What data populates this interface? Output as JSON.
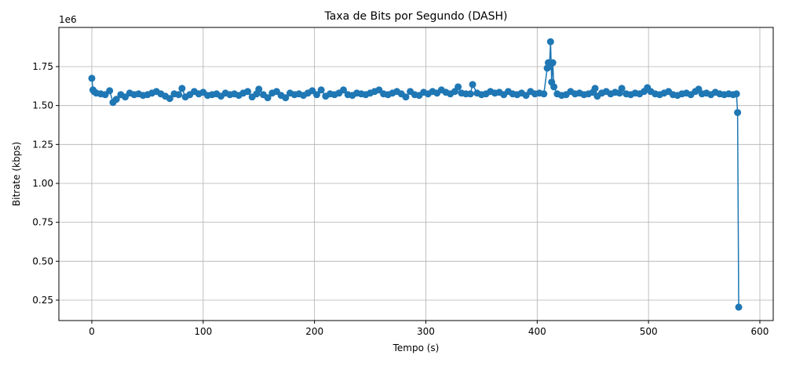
{
  "chart_data": {
    "type": "line",
    "title": "Taxa de Bits por Segundo (DASH)",
    "xlabel": "Tempo (s)",
    "ylabel": "Bitrate (kbps)",
    "y_offset_label": "1e6",
    "color": "#1f77b4",
    "grid": true,
    "markers": true,
    "xlim": [
      -29.6,
      612
    ],
    "ylim": [
      119000,
      2001700
    ],
    "xticks": [
      0,
      100,
      200,
      300,
      400,
      500,
      600
    ],
    "yticks": [
      {
        "value": 250000,
        "label": "0.25"
      },
      {
        "value": 500000,
        "label": "0.50"
      },
      {
        "value": 750000,
        "label": "0.75"
      },
      {
        "value": 1000000,
        "label": "1.00"
      },
      {
        "value": 1250000,
        "label": "1.25"
      },
      {
        "value": 1500000,
        "label": "1.50"
      },
      {
        "value": 1750000,
        "label": "1.75"
      }
    ],
    "x": [
      0,
      1,
      2,
      4,
      8,
      12,
      16,
      19,
      22,
      26,
      30,
      34,
      38,
      42,
      46,
      50,
      54,
      58,
      62,
      66,
      70,
      74,
      78,
      81,
      84,
      88,
      92,
      96,
      100,
      104,
      108,
      112,
      116,
      120,
      124,
      128,
      132,
      136,
      140,
      144,
      148,
      150,
      154,
      158,
      162,
      166,
      170,
      174,
      178,
      182,
      186,
      190,
      194,
      198,
      202,
      206,
      210,
      214,
      218,
      222,
      226,
      230,
      234,
      238,
      242,
      246,
      250,
      254,
      258,
      262,
      266,
      270,
      274,
      278,
      282,
      286,
      290,
      294,
      298,
      302,
      306,
      310,
      314,
      318,
      322,
      326,
      329,
      332,
      336,
      340,
      342,
      346,
      350,
      354,
      358,
      362,
      366,
      370,
      374,
      378,
      382,
      386,
      390,
      394,
      398,
      402,
      406,
      409,
      410,
      411,
      412,
      413,
      414,
      415,
      418,
      422,
      426,
      430,
      434,
      438,
      442,
      446,
      450,
      452,
      454,
      458,
      462,
      466,
      470,
      474,
      476,
      480,
      484,
      488,
      492,
      496,
      499,
      502,
      506,
      510,
      514,
      518,
      522,
      526,
      530,
      534,
      538,
      542,
      545,
      548,
      552,
      556,
      560,
      564,
      568,
      572,
      576,
      579,
      580,
      581
    ],
    "values": [
      1675000,
      1600000,
      1590000,
      1580000,
      1575000,
      1570000,
      1595000,
      1520000,
      1540000,
      1570000,
      1555000,
      1580000,
      1570000,
      1575000,
      1565000,
      1570000,
      1580000,
      1590000,
      1575000,
      1560000,
      1545000,
      1575000,
      1570000,
      1610000,
      1555000,
      1570000,
      1590000,
      1575000,
      1585000,
      1565000,
      1570000,
      1575000,
      1560000,
      1580000,
      1570000,
      1575000,
      1565000,
      1580000,
      1590000,
      1555000,
      1575000,
      1605000,
      1570000,
      1550000,
      1580000,
      1590000,
      1565000,
      1550000,
      1580000,
      1570000,
      1575000,
      1565000,
      1580000,
      1595000,
      1570000,
      1600000,
      1560000,
      1575000,
      1570000,
      1580000,
      1600000,
      1570000,
      1565000,
      1580000,
      1575000,
      1570000,
      1580000,
      1590000,
      1600000,
      1575000,
      1570000,
      1580000,
      1590000,
      1575000,
      1555000,
      1590000,
      1570000,
      1565000,
      1585000,
      1575000,
      1590000,
      1580000,
      1600000,
      1585000,
      1575000,
      1590000,
      1620000,
      1580000,
      1575000,
      1575000,
      1635000,
      1580000,
      1570000,
      1575000,
      1590000,
      1580000,
      1585000,
      1570000,
      1590000,
      1575000,
      1570000,
      1580000,
      1565000,
      1590000,
      1575000,
      1580000,
      1575000,
      1740000,
      1775000,
      1750000,
      1910000,
      1650000,
      1775000,
      1620000,
      1575000,
      1565000,
      1570000,
      1590000,
      1575000,
      1580000,
      1570000,
      1575000,
      1585000,
      1610000,
      1560000,
      1580000,
      1590000,
      1575000,
      1585000,
      1580000,
      1610000,
      1575000,
      1570000,
      1580000,
      1575000,
      1590000,
      1615000,
      1590000,
      1575000,
      1570000,
      1580000,
      1590000,
      1570000,
      1565000,
      1575000,
      1580000,
      1570000,
      1590000,
      1605000,
      1575000,
      1580000,
      1570000,
      1585000,
      1575000,
      1570000,
      1575000,
      1570000,
      1575000,
      1455000,
      205000
    ]
  }
}
